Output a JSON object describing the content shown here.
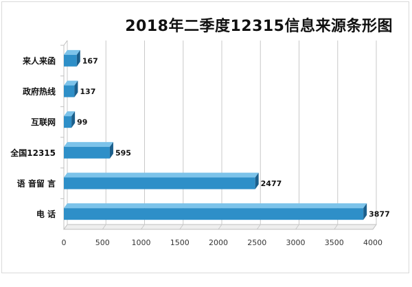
{
  "chart_data": {
    "type": "bar",
    "orientation": "horizontal",
    "style": "3d",
    "title": "2018年二季度12315信息来源条形图",
    "categories": [
      "来人来函",
      "政府热线",
      "互联网",
      "全国12315",
      "语 音留 言",
      "电 话"
    ],
    "values": [
      167,
      137,
      99,
      595,
      2477,
      3877
    ],
    "xlim": [
      0,
      4000
    ],
    "xticks": [
      0,
      500,
      1000,
      1500,
      2000,
      2500,
      3000,
      3500,
      4000
    ],
    "grid": true,
    "legend": "none",
    "bar_color": "#2e8fc8"
  }
}
